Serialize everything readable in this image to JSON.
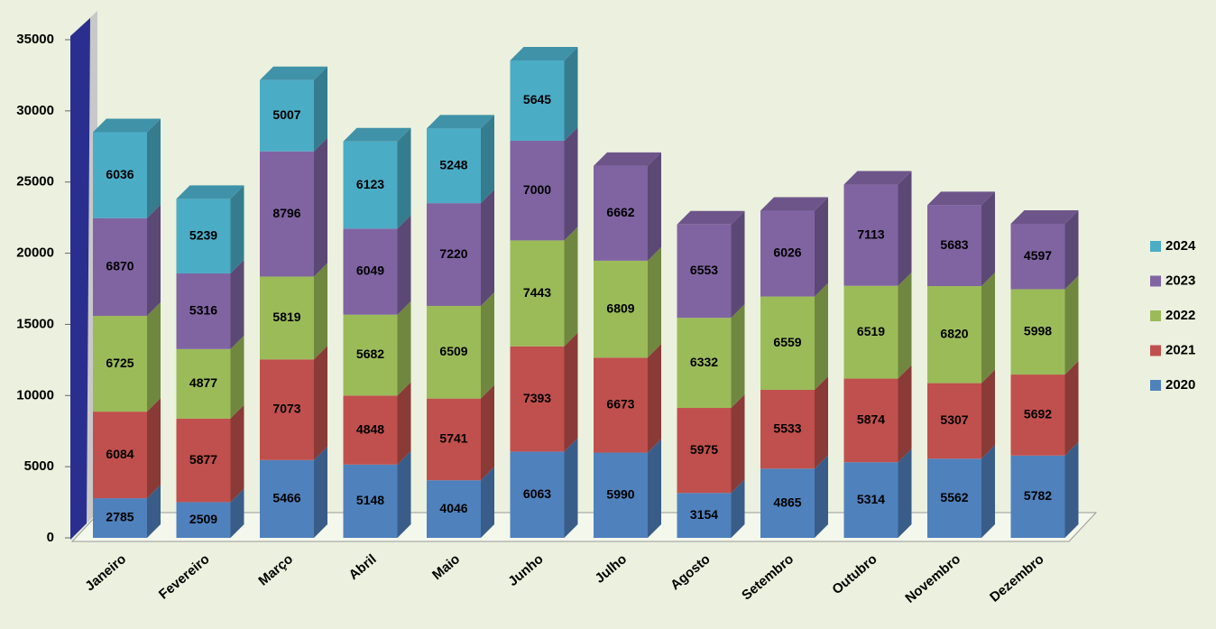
{
  "chart_data": {
    "type": "bar3d_stacked",
    "categories": [
      "Janeiro",
      "Fevereiro",
      "Março",
      "Abril",
      "Maio",
      "Junho",
      "Julho",
      "Agosto",
      "Setembro",
      "Outubro",
      "Novembro",
      "Dezembro"
    ],
    "series": [
      {
        "name": "2020",
        "color": "#4f81bd",
        "values": [
          2785,
          2509,
          5466,
          5148,
          4046,
          6063,
          5990,
          3154,
          4865,
          5314,
          5562,
          5782
        ]
      },
      {
        "name": "2021",
        "color": "#c0504d",
        "values": [
          6084,
          5877,
          7073,
          4848,
          5741,
          7393,
          6673,
          5975,
          5533,
          5874,
          5307,
          5692
        ]
      },
      {
        "name": "2022",
        "color": "#9bbb59",
        "values": [
          6725,
          4877,
          5819,
          5682,
          6509,
          7443,
          6809,
          6332,
          6559,
          6519,
          6820,
          5998
        ]
      },
      {
        "name": "2023",
        "color": "#8064a2",
        "values": [
          6870,
          5316,
          8796,
          6049,
          7220,
          7000,
          6662,
          6553,
          6026,
          7113,
          5683,
          4597
        ]
      },
      {
        "name": "2024",
        "color": "#4bacc6",
        "values": [
          6036,
          5239,
          5007,
          6123,
          5248,
          5645,
          null,
          null,
          null,
          null,
          null,
          null
        ]
      }
    ],
    "ylim": [
      0,
      35000
    ],
    "yticks": [
      0,
      5000,
      10000,
      15000,
      20000,
      25000,
      30000,
      35000
    ],
    "grid": false,
    "legend": "right"
  }
}
